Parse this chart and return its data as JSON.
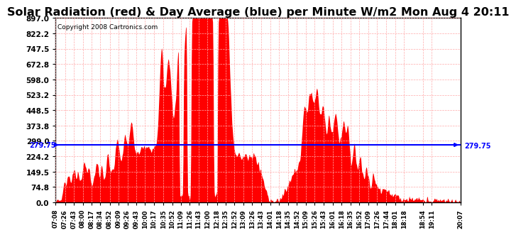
{
  "title": "Solar Radiation (red) & Day Average (blue) per Minute W/m2 Mon Aug 4 20:11",
  "copyright": "Copyright 2008 Cartronics.com",
  "avg_line_value": 279.75,
  "avg_label": "279.75",
  "y_max": 897.0,
  "y_min": 0.0,
  "y_ticks": [
    0.0,
    74.8,
    149.5,
    224.2,
    299.0,
    373.8,
    448.5,
    523.2,
    598.0,
    672.8,
    747.5,
    822.2,
    897.0
  ],
  "bg_color": "#ffffff",
  "fill_color": "#ff0000",
  "line_color": "#0000ff",
  "grid_color": "#ffaaaa",
  "title_fontsize": 11.5,
  "x_labels": [
    "07:08",
    "07:26",
    "07:43",
    "08:00",
    "08:17",
    "08:34",
    "08:52",
    "09:09",
    "09:26",
    "09:43",
    "10:00",
    "10:17",
    "10:35",
    "10:52",
    "11:09",
    "11:26",
    "11:43",
    "12:00",
    "12:18",
    "12:35",
    "12:52",
    "13:09",
    "13:26",
    "13:43",
    "14:01",
    "14:18",
    "14:35",
    "14:52",
    "15:09",
    "15:26",
    "15:43",
    "16:01",
    "16:18",
    "16:35",
    "16:52",
    "17:09",
    "17:26",
    "17:44",
    "18:01",
    "18:18",
    "18:54",
    "19:11",
    "20:07"
  ]
}
